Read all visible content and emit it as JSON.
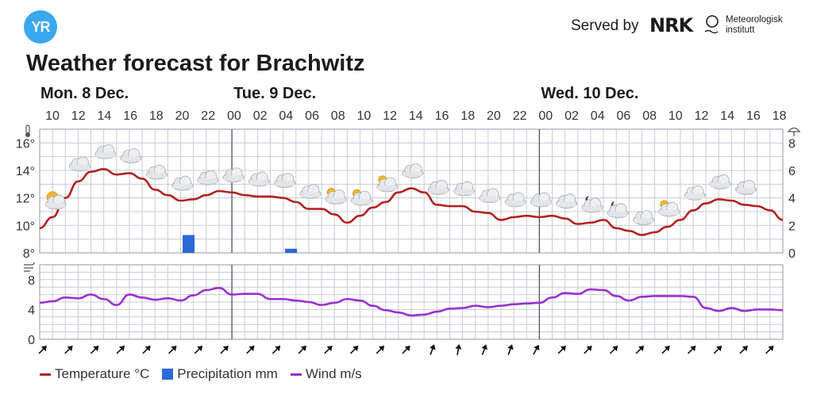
{
  "header": {
    "logo_text": "YR",
    "served_by": "Served by",
    "nrk_logo": "NRK",
    "met_line1": "Meteorologisk",
    "met_line2": "institutt",
    "title": "Weather forecast for Brachwitz"
  },
  "legend": {
    "temperature": "Temperature °C",
    "precipitation": "Precipitation mm",
    "wind": "Wind m/s"
  },
  "colors": {
    "temperature": "#b22222",
    "precipitation": "#2d68d8",
    "wind": "#9b30d0",
    "grid": "#c5ccd4"
  },
  "chart_data": {
    "type": "line",
    "days": [
      {
        "label": "Mon. 8 Dec.",
        "start_index": 0
      },
      {
        "label": "Tue. 9 Dec.",
        "start_index": 15
      },
      {
        "label": "Wed. 10 Dec.",
        "start_index": 39
      }
    ],
    "hour_labels": [
      "10",
      "12",
      "14",
      "16",
      "18",
      "20",
      "22",
      "00",
      "02",
      "04",
      "06",
      "08",
      "10",
      "12",
      "14",
      "16",
      "18",
      "20",
      "22",
      "00",
      "02",
      "04",
      "06",
      "08",
      "10",
      "12",
      "14",
      "16",
      "18"
    ],
    "temp_axis": {
      "min": 8,
      "max": 17,
      "ticks": [
        "8°",
        "10°",
        "12°",
        "14°",
        "16°"
      ],
      "tick_values": [
        8,
        10,
        12,
        14,
        16
      ]
    },
    "precip_axis": {
      "min": 0,
      "max": 9,
      "ticks": [
        "0",
        "2",
        "4",
        "6",
        "8"
      ],
      "tick_values": [
        0,
        2,
        4,
        6,
        8
      ]
    },
    "wind_axis": {
      "min": 0,
      "max": 10,
      "ticks": [
        "0",
        "4",
        "8"
      ],
      "tick_values": [
        0,
        4,
        8
      ]
    },
    "series": [
      {
        "name": "Temperature °C",
        "unit": "°C",
        "values": [
          9.8,
          10.6,
          12.0,
          13.2,
          13.9,
          14.1,
          13.7,
          13.8,
          13.4,
          12.6,
          12.2,
          11.8,
          11.9,
          12.2,
          12.5,
          12.4,
          12.2,
          12.1,
          12.1,
          12.0,
          11.7,
          11.2,
          11.2,
          10.8,
          10.2,
          10.7,
          11.3,
          11.7,
          12.4,
          12.7,
          12.4,
          11.5,
          11.4,
          11.4,
          11.0,
          10.9,
          10.4,
          10.6,
          10.7,
          10.6,
          10.7,
          10.5,
          10.1,
          10.2,
          10.4,
          9.8,
          9.6,
          9.3,
          9.5,
          9.9,
          10.4,
          11.1,
          11.6,
          11.9,
          11.8,
          11.5,
          11.4,
          11.1,
          10.4
        ]
      },
      {
        "name": "Wind m/s",
        "unit": "m/s",
        "values": [
          4.9,
          5.1,
          5.6,
          5.5,
          6.0,
          5.4,
          4.6,
          6.0,
          5.6,
          5.3,
          5.5,
          5.2,
          5.9,
          6.6,
          6.9,
          6.0,
          6.1,
          6.1,
          5.4,
          5.4,
          5.2,
          5.0,
          4.6,
          4.9,
          5.4,
          5.2,
          4.5,
          3.9,
          3.6,
          3.2,
          3.3,
          3.7,
          4.1,
          4.2,
          4.5,
          4.3,
          4.5,
          4.7,
          4.8,
          4.9,
          5.6,
          6.2,
          6.1,
          6.7,
          6.6,
          5.8,
          5.2,
          5.7,
          5.8,
          5.8,
          5.8,
          5.7,
          4.2,
          3.8,
          4.2,
          3.8,
          4.0,
          4.0,
          3.9
        ]
      },
      {
        "name": "Precipitation mm",
        "unit": "mm",
        "values": [
          0,
          0,
          0,
          0,
          0,
          0,
          0,
          0,
          0,
          0,
          0,
          1.3,
          0,
          0,
          0,
          0,
          0,
          0,
          0,
          0.3,
          0,
          0,
          0,
          0,
          0,
          0,
          0,
          0,
          0,
          0,
          0,
          0,
          0,
          0,
          0,
          0,
          0,
          0,
          0,
          0,
          0,
          0,
          0,
          0,
          0,
          0,
          0,
          0,
          0,
          0,
          0,
          0,
          0,
          0,
          0,
          0,
          0,
          0,
          0
        ]
      }
    ],
    "weather_icons": [
      {
        "index": 1,
        "icon": "partly-sunny-icon"
      },
      {
        "index": 3,
        "icon": "cloud-icon"
      },
      {
        "index": 5,
        "icon": "cloud-icon"
      },
      {
        "index": 7,
        "icon": "cloud-icon"
      },
      {
        "index": 9,
        "icon": "cloud-icon"
      },
      {
        "index": 11,
        "icon": "cloud-icon"
      },
      {
        "index": 13,
        "icon": "cloud-icon"
      },
      {
        "index": 15,
        "icon": "cloud-icon"
      },
      {
        "index": 17,
        "icon": "cloud-icon"
      },
      {
        "index": 19,
        "icon": "cloud-icon"
      },
      {
        "index": 21,
        "icon": "cloud-icon"
      },
      {
        "index": 23,
        "icon": "cloud-sun-icon"
      },
      {
        "index": 25,
        "icon": "cloud-sun-icon"
      },
      {
        "index": 27,
        "icon": "cloud-sun-icon"
      },
      {
        "index": 29,
        "icon": "cloud-icon"
      },
      {
        "index": 31,
        "icon": "cloud-icon"
      },
      {
        "index": 33,
        "icon": "cloud-icon"
      },
      {
        "index": 35,
        "icon": "cloud-icon"
      },
      {
        "index": 37,
        "icon": "cloud-icon"
      },
      {
        "index": 39,
        "icon": "cloud-icon"
      },
      {
        "index": 41,
        "icon": "cloud-icon"
      },
      {
        "index": 43,
        "icon": "cloud-moon-icon"
      },
      {
        "index": 45,
        "icon": "cloud-moon-icon"
      },
      {
        "index": 47,
        "icon": "cloud-icon"
      },
      {
        "index": 49,
        "icon": "cloud-sun-icon"
      },
      {
        "index": 51,
        "icon": "cloud-icon"
      },
      {
        "index": 53,
        "icon": "cloud-icon"
      },
      {
        "index": 55,
        "icon": "cloud-icon"
      }
    ],
    "wind_directions": [
      45,
      45,
      45,
      45,
      45,
      45,
      45,
      45,
      45,
      45,
      45,
      45,
      45,
      45,
      45,
      20,
      10,
      20,
      20,
      30,
      45,
      45,
      45,
      45,
      45,
      45,
      45,
      45,
      45
    ],
    "xlabel": "",
    "ylabel": "",
    "grid": true,
    "legend_placement": "bottom-left"
  }
}
